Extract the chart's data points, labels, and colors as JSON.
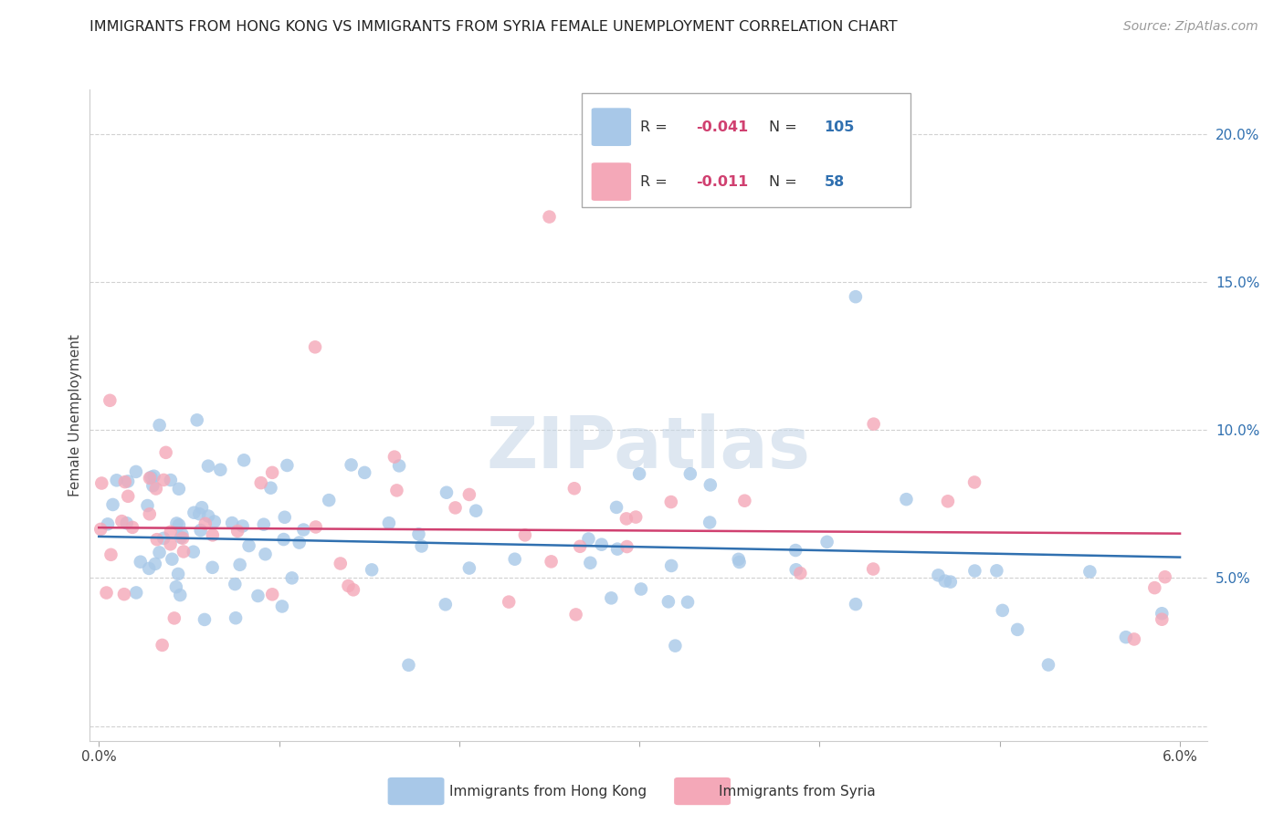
{
  "title": "IMMIGRANTS FROM HONG KONG VS IMMIGRANTS FROM SYRIA FEMALE UNEMPLOYMENT CORRELATION CHART",
  "source": "Source: ZipAtlas.com",
  "ylabel": "Female Unemployment",
  "xlim": [
    0.0,
    0.06
  ],
  "ylim": [
    0.0,
    0.21
  ],
  "hk_color": "#a8c8e8",
  "syria_color": "#f4a8b8",
  "hk_line_color": "#3070b0",
  "syria_line_color": "#d04070",
  "r_color": "#d04070",
  "n_color": "#3070b0",
  "hk_r": "-0.041",
  "hk_n": "105",
  "syria_r": "-0.011",
  "syria_n": "58",
  "legend_label_hk": "Immigrants from Hong Kong",
  "legend_label_syria": "Immigrants from Syria",
  "watermark": "ZIPatlas",
  "watermark_color": "#c8d8e8",
  "grid_color": "#cccccc",
  "title_fontsize": 11.5,
  "tick_fontsize": 11,
  "label_fontsize": 11
}
